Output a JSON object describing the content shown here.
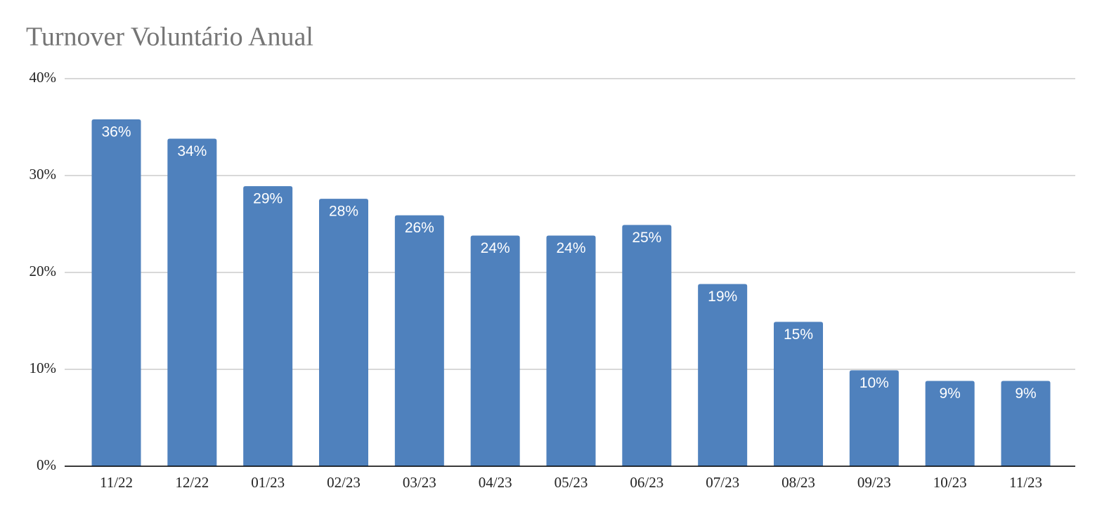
{
  "chart_data": {
    "type": "bar",
    "title": "Turnover Voluntário Anual",
    "categories": [
      "11/22",
      "12/22",
      "01/23",
      "02/23",
      "03/23",
      "04/23",
      "05/23",
      "06/23",
      "07/23",
      "08/23",
      "09/23",
      "10/23",
      "11/23"
    ],
    "values": [
      35.8,
      33.8,
      28.9,
      27.6,
      25.9,
      23.8,
      23.8,
      24.9,
      18.8,
      14.9,
      9.9,
      8.8,
      8.8
    ],
    "value_labels": [
      "36%",
      "34%",
      "29%",
      "28%",
      "26%",
      "24%",
      "24%",
      "25%",
      "19%",
      "15%",
      "10%",
      "9%",
      "9%"
    ],
    "color": "#4f81bd",
    "ylim": [
      0,
      40
    ],
    "yticks": [
      {
        "value": 0,
        "label": "0%"
      },
      {
        "value": 10,
        "label": "10%"
      },
      {
        "value": 20,
        "label": "20%"
      },
      {
        "value": 30,
        "label": "30%"
      },
      {
        "value": 40,
        "label": "40%"
      }
    ],
    "grid": true
  }
}
